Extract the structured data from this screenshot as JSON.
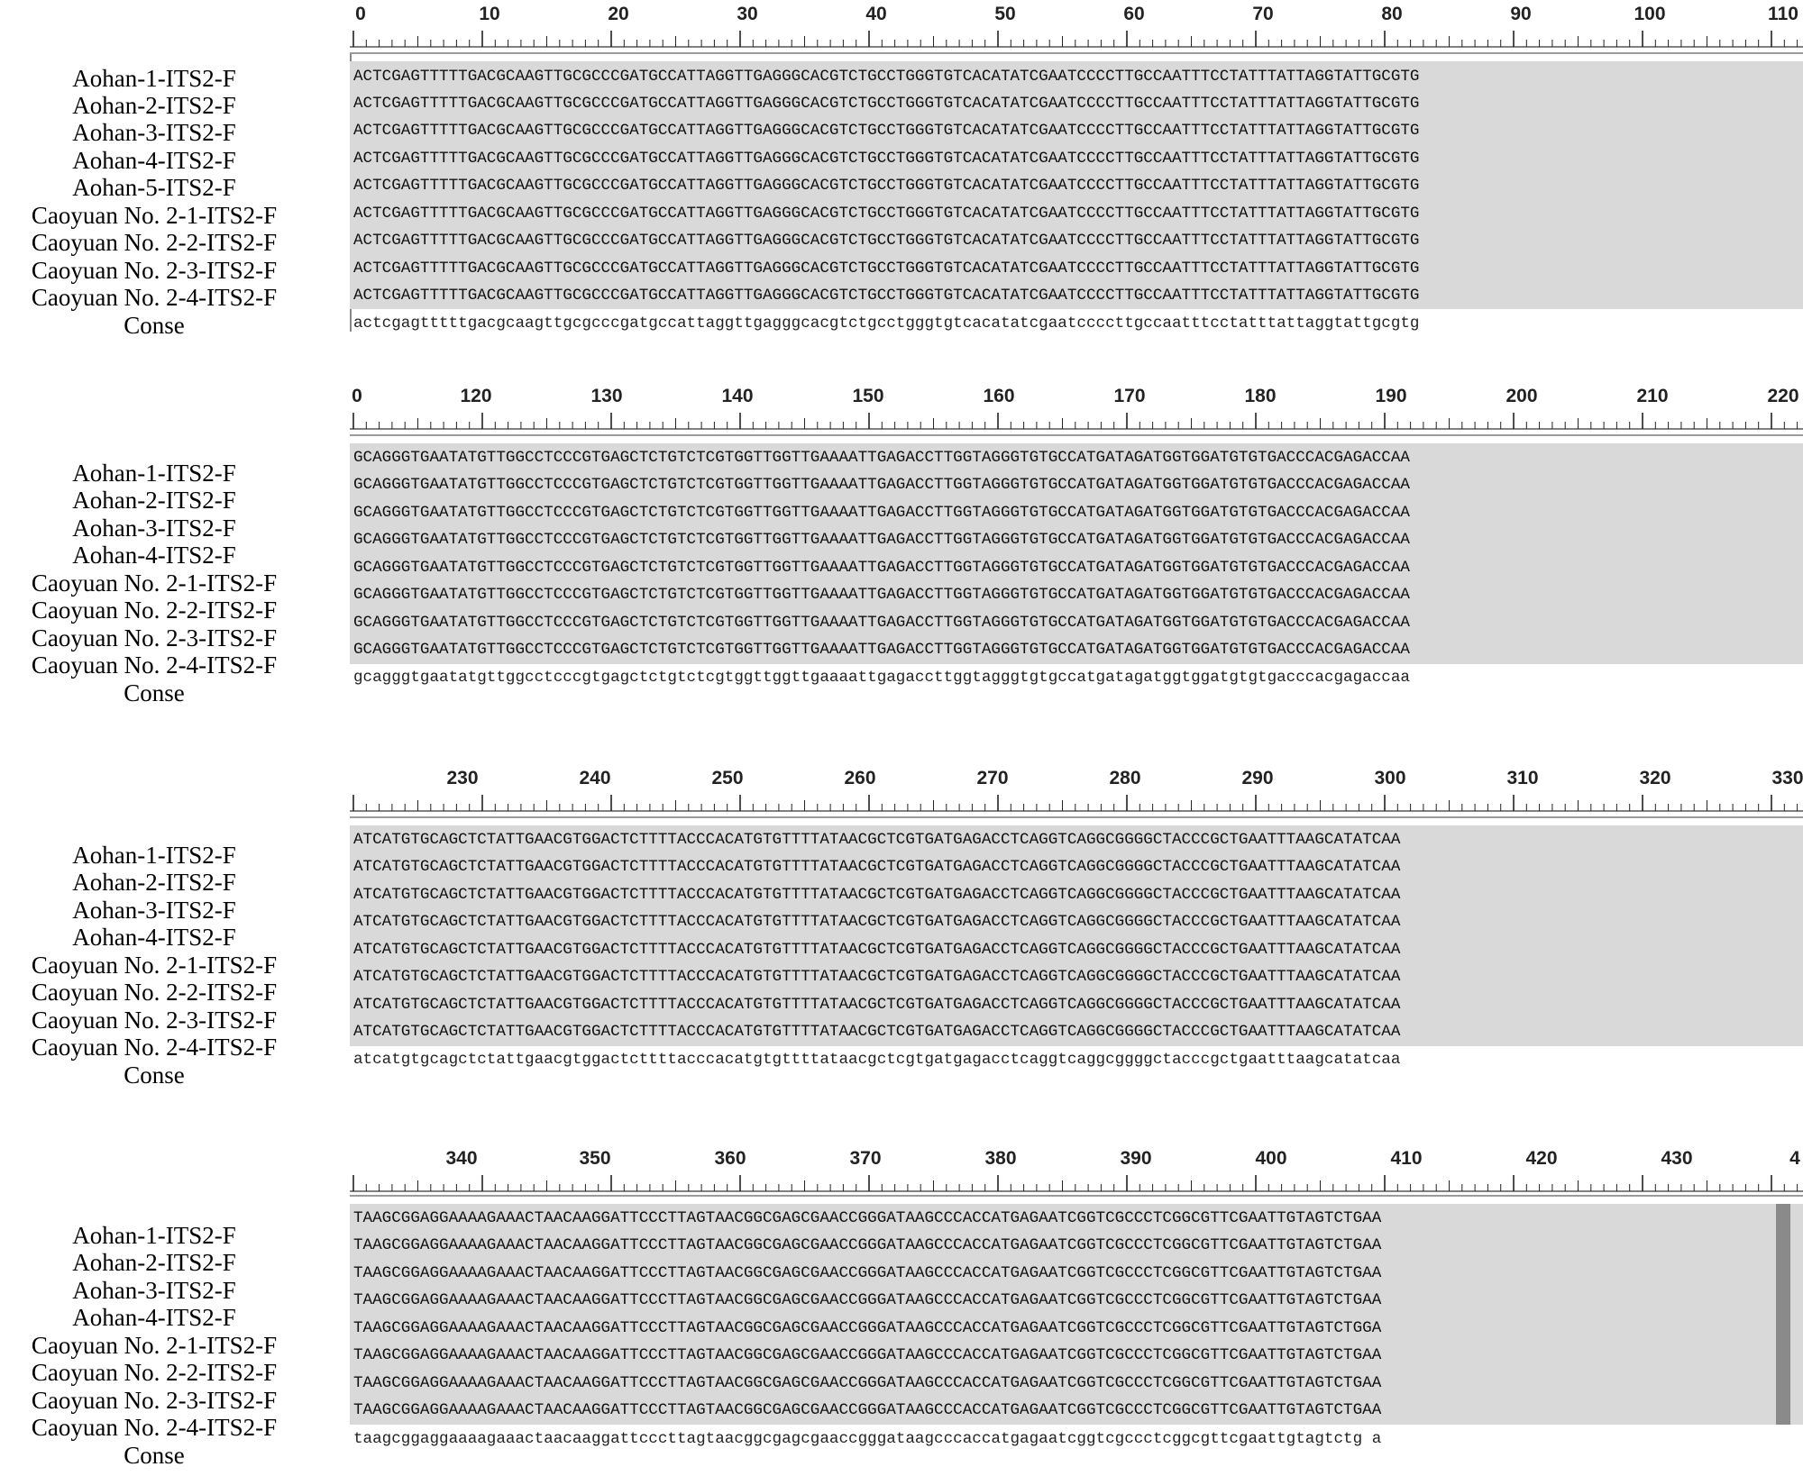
{
  "rows": [
    "Aohan-1-ITS2-F",
    "Aohan-2-ITS2-F",
    "Aohan-3-ITS2-F",
    "Aohan-4-ITS2-F",
    "Aohan-5-ITS2-F",
    "Caoyuan No. 2-1-ITS2-F",
    "Caoyuan No. 2-2-ITS2-F",
    "Caoyuan No. 2-3-ITS2-F",
    "Caoyuan No. 2-4-ITS2-F",
    "Conse"
  ],
  "rows_short": [
    "Aohan-1-ITS2-F",
    "Aohan-2-ITS2-F",
    "Aohan-3-ITS2-F",
    "Aohan-4-ITS2-F",
    "Caoyuan No. 2-1-ITS2-F",
    "Caoyuan No. 2-2-ITS2-F",
    "Caoyuan No. 2-3-ITS2-F",
    "Caoyuan No. 2-4-ITS2-F",
    "Conse"
  ],
  "blocks": [
    {
      "ticks": [
        "0",
        "10",
        "20",
        "30",
        "40",
        "50",
        "60",
        "70",
        "80",
        "90",
        "100",
        "110"
      ],
      "seq": "ACTCGAGTTTTTGACGCAAGTTGCGCCCGATGCCATTAGGTTGAGGGCACGTCTGCCTGGGTGTCACATATCGAATCCCCTTGCCAATTTCCTATTTATTAGGTATTGCGTG",
      "cons": "actcgagtttttgacgcaagttgcgcccgatgccattaggttgagggcacgtctgcctgggtgtcacatatcgaatccccttgccaatttcctatttattaggtattgcgtg"
    },
    {
      "ticks": [
        "0",
        "120",
        "130",
        "140",
        "150",
        "160",
        "170",
        "180",
        "190",
        "200",
        "210",
        "220"
      ],
      "seq": "GCAGGGTGAATATGTTGGCCTCCCGTGAGCTCTGTCTCGTGGTTGGTTGAAAATTGAGACCTTGGTAGGGTGTGCCATGATAGATGGTGGATGTGTGACCCACGAGACCAA",
      "cons": "gcagggtgaatatgttggcctcccgtgagctctgtctcgtggttggttgaaaattgagaccttggtagggtgtgccatgatagatggtggatgtgtgacccacgagaccaa"
    },
    {
      "ticks": [
        "230",
        "240",
        "250",
        "260",
        "270",
        "280",
        "290",
        "300",
        "310",
        "320",
        "330"
      ],
      "seq": "ATCATGTGCAGCTCTATTGAACGTGGACTCTTTTACCCACATGTGTTTTATAACGCTCGTGATGAGACCTCAGGTCAGGCGGGGCTACCCGCTGAATTTAAGCATATCAA",
      "cons": "atcatgtgcagctctattgaacgtggactcttttacccacatgtgttttataacgctcgtgatgagacctcaggtcaggcggggctacccgctgaatttaagcatatcaa"
    },
    {
      "ticks": [
        "340",
        "350",
        "360",
        "370",
        "380",
        "390",
        "400",
        "410",
        "420",
        "430",
        "4"
      ],
      "seq": "TAAGCGGAGGAAAAGAAACTAACAAGGATTCCCTTAGTAACGGCGAGCGAACCGGGATAAGCCCACCATGAGAATCGGTCGCCCTCGGCGTTCGAATTGTAGTCTGAA",
      "seq_var": "TAAGCGGAGGAAAAGAAACTAACAAGGATTCCCTTAGTAACGGCGAGCGAACCGGGATAAGCCCACCATGAGAATCGGTCGCCCTCGGCGTTCGAATTGTAGTCTGGA",
      "cons": "taagcggaggaaaagaaactaacaaggattcccttagtaacggcgagcgaaccgggataagcccaccatgagaatcggtcgccctcggcgttcgaattgtagtctg a"
    }
  ]
}
